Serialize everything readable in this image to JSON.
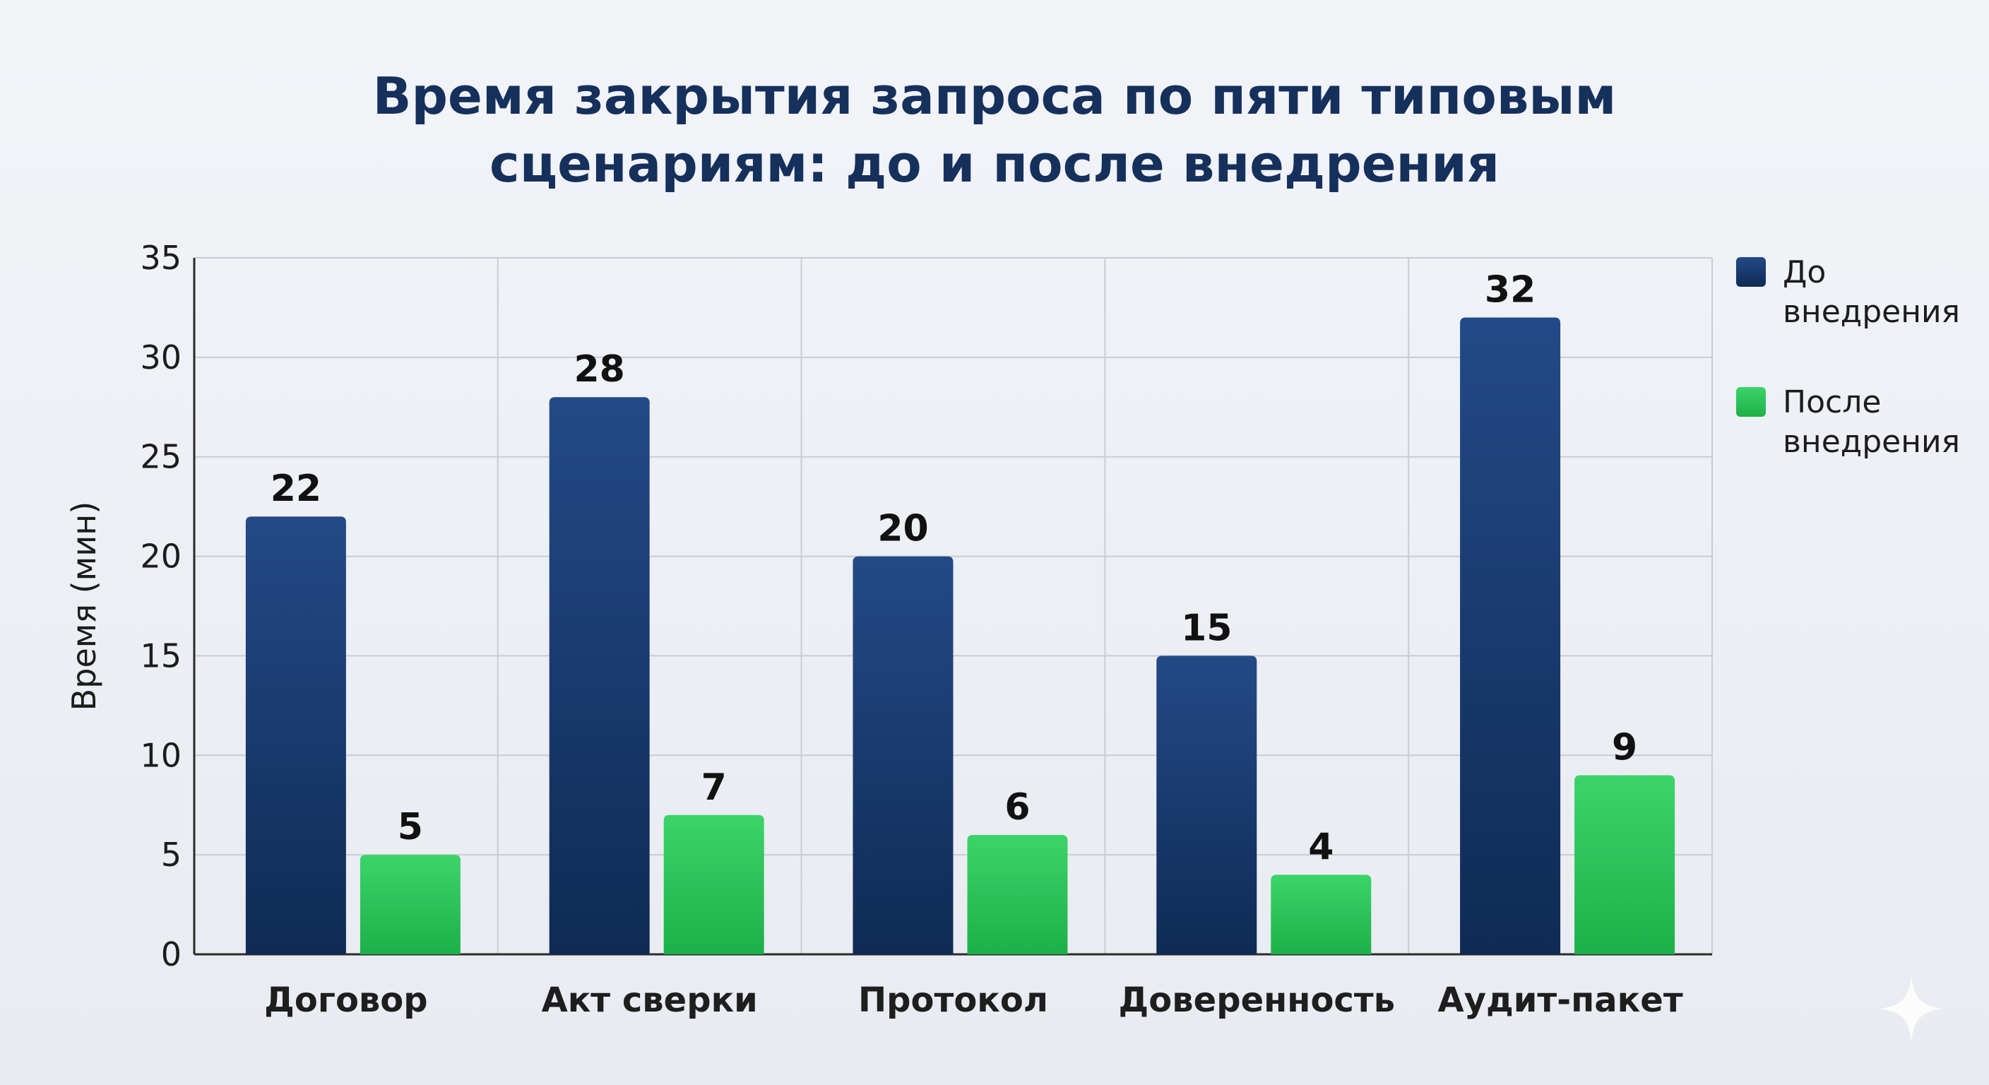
{
  "chart_data": {
    "type": "bar",
    "title_lines": [
      "Время закрытия запроса по пяти типовым",
      "сценариям: до и после внедрения"
    ],
    "ylabel": "Время (мин)",
    "xlabel": "",
    "ylim": [
      0,
      35
    ],
    "yticks": [
      "0",
      "5",
      "10",
      "15",
      "20",
      "25",
      "30",
      "35"
    ],
    "ytick_values": [
      0,
      5,
      10,
      15,
      20,
      25,
      30,
      35
    ],
    "categories": [
      "Договор",
      "Акт сверки",
      "Протокол",
      "Доверенность",
      "Аудит-пакет"
    ],
    "series": [
      {
        "name": "До внедрения",
        "legend_lines": [
          "До",
          "внедрения"
        ],
        "color": "#1c3d73",
        "values": [
          22,
          28,
          20,
          15,
          32
        ]
      },
      {
        "name": "После внедрения",
        "legend_lines": [
          "После",
          "внедрения"
        ],
        "color": "#2ec95a",
        "values": [
          5,
          7,
          6,
          4,
          9
        ]
      }
    ],
    "grid": true,
    "legend_position": "right"
  },
  "icons": {
    "corner": "sparkle-icon"
  },
  "colors": {
    "title": "#16305c",
    "background": "#eef0f5",
    "grid": "#c9ccd6"
  }
}
